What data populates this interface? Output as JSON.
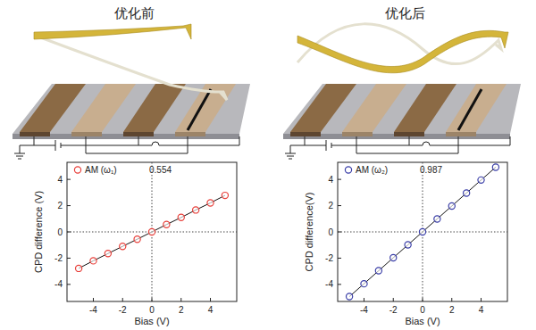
{
  "chart_data": [
    {
      "type": "scatter",
      "title": "优化前",
      "x": [
        -5,
        -4,
        -3,
        -2,
        -1,
        0,
        1,
        2,
        3,
        4,
        5
      ],
      "series": [
        {
          "name": "AM (ω₁)",
          "color": "#e8413c",
          "marker": "circle",
          "line_style": "solid",
          "values": [
            -2.78,
            -2.2,
            -1.65,
            -1.1,
            -0.56,
            0,
            0.56,
            1.1,
            1.67,
            2.21,
            2.78
          ]
        }
      ],
      "annotations": [
        "0.554"
      ],
      "x_label": "Bias (V)",
      "y_label": "CPD difference (V)",
      "xlim": [
        -5.8,
        5.8
      ],
      "ylim": [
        -5.3,
        5.3
      ],
      "xticks": [
        -4,
        -2,
        0,
        2,
        4
      ],
      "yticks": [
        -4,
        -2,
        0,
        2,
        4
      ]
    },
    {
      "type": "scatter",
      "title": "优化后",
      "x": [
        -5,
        -4,
        -3,
        -2,
        -1,
        0,
        1,
        2,
        3,
        4,
        5
      ],
      "series": [
        {
          "name": "AM (ω₂)",
          "color": "#3b3fa8",
          "marker": "circle",
          "line_style": "solid",
          "values": [
            -4.93,
            -3.95,
            -2.96,
            -1.97,
            -0.99,
            0,
            0.99,
            1.97,
            2.96,
            3.95,
            4.93
          ]
        }
      ],
      "annotations": [
        "0.987"
      ],
      "x_label": "Bias (V)",
      "y_label": "CPD difference(V)",
      "xlim": [
        -5.8,
        5.8
      ],
      "ylim": [
        -5.3,
        5.3
      ],
      "xticks": [
        -4,
        -2,
        0,
        2,
        4
      ],
      "yticks": [
        -4,
        -2,
        0,
        2,
        4
      ]
    }
  ]
}
